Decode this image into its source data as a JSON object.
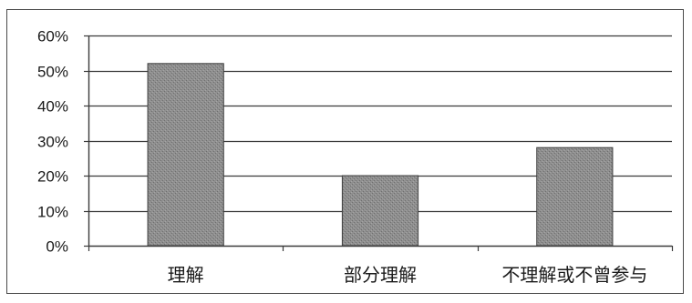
{
  "chart_data": {
    "type": "bar",
    "categories": [
      "理解",
      "部分理解",
      "不理解或不曾参与"
    ],
    "values": [
      0.52,
      0.2,
      0.28
    ],
    "title": "",
    "xlabel": "",
    "ylabel": "",
    "ylim": [
      0,
      0.6
    ],
    "y_ticks": [
      0,
      0.1,
      0.2,
      0.3,
      0.4,
      0.5,
      0.6
    ],
    "y_tick_labels": [
      "0%",
      "10%",
      "20%",
      "30%",
      "40%",
      "50%",
      "60%"
    ],
    "grid": true,
    "legend": "none",
    "bar_color": "#8a8a8a",
    "bar_edge_color": "#3f3f3f",
    "grid_color": "#3a3a3a"
  }
}
